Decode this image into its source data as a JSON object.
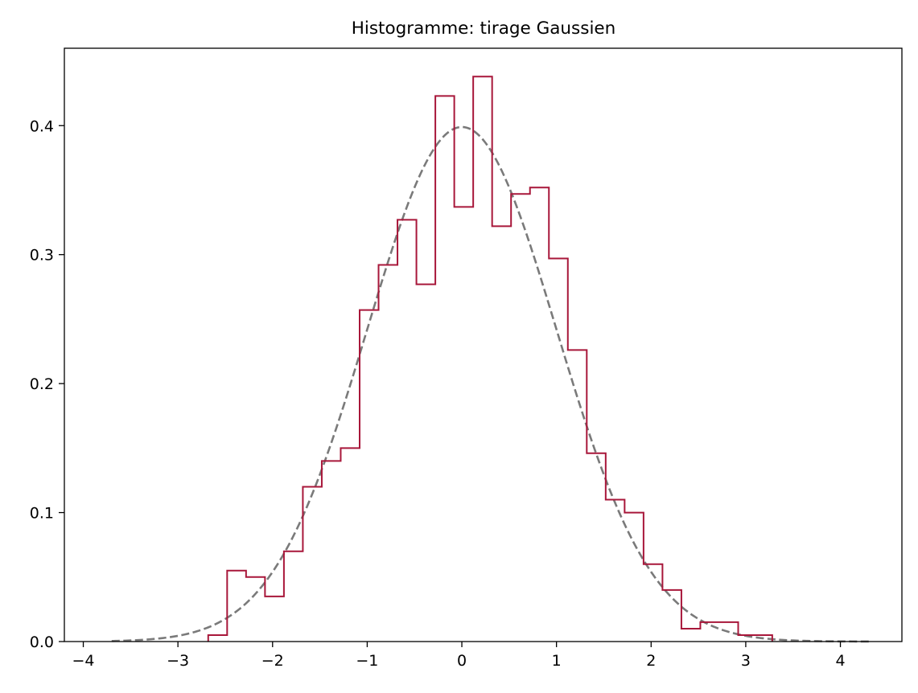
{
  "chart_data": {
    "type": "histogram",
    "title": "Histogramme: tirage Gaussien",
    "xlabel": "",
    "ylabel": "",
    "xlim": [
      -4.2,
      4.65
    ],
    "ylim": [
      0.0,
      0.46
    ],
    "grid": false,
    "x_ticks": [
      {
        "value": -4,
        "label": "−4"
      },
      {
        "value": -3,
        "label": "−3"
      },
      {
        "value": -2,
        "label": "−2"
      },
      {
        "value": -1,
        "label": "−1"
      },
      {
        "value": 0,
        "label": "0"
      },
      {
        "value": 1,
        "label": "1"
      },
      {
        "value": 2,
        "label": "2"
      },
      {
        "value": 3,
        "label": "3"
      },
      {
        "value": 4,
        "label": "4"
      }
    ],
    "y_ticks": [
      {
        "value": 0.0,
        "label": "0.0"
      },
      {
        "value": 0.1,
        "label": "0.1"
      },
      {
        "value": 0.2,
        "label": "0.2"
      },
      {
        "value": 0.3,
        "label": "0.3"
      },
      {
        "value": 0.4,
        "label": "0.4"
      }
    ],
    "histogram": {
      "color": "#a8173a",
      "style": "step",
      "bin_edges": [
        -2.68,
        -2.48,
        -2.28,
        -2.08,
        -1.88,
        -1.68,
        -1.48,
        -1.28,
        -1.08,
        -0.88,
        -0.68,
        -0.48,
        -0.28,
        -0.08,
        0.12,
        0.32,
        0.52,
        0.72,
        0.92,
        1.12,
        1.32,
        1.52,
        1.72,
        1.92,
        2.12,
        2.32,
        2.52,
        2.72,
        2.92,
        3.12,
        3.28
      ],
      "densities": [
        0.005,
        0.055,
        0.05,
        0.035,
        0.07,
        0.12,
        0.14,
        0.15,
        0.257,
        0.292,
        0.327,
        0.277,
        0.423,
        0.337,
        0.438,
        0.322,
        0.347,
        0.352,
        0.297,
        0.226,
        0.146,
        0.11,
        0.1,
        0.06,
        0.04,
        0.01,
        0.015,
        0.015,
        0.005,
        0.005
      ]
    },
    "curve": {
      "type": "normal_pdf",
      "mean": 0,
      "std": 1,
      "x_range": [
        -3.7,
        4.3
      ],
      "color": "#7a7a7a",
      "dashed": true
    }
  }
}
